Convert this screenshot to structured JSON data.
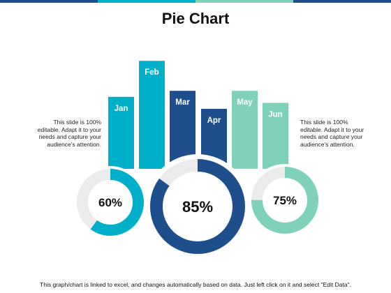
{
  "title": "Pie Chart",
  "side_text_left": "This slide is 100% editable. Adapt it to your needs and capture your audience's attention.",
  "side_text_right": "This slide is 100% editable. Adapt it to your needs and capture your audience's attention.",
  "footer": "This graph/chart is linked to excel, and changes automatically based on data.  Just left click on it and select \"Edit Data\".",
  "colors": {
    "teal": "#00b0ca",
    "navy": "#1f4e8c",
    "mint": "#7fd1b9",
    "track": "#ebebeb",
    "topbar": [
      "#1f4e8c",
      "#00b0ca",
      "#7fd1b9",
      "#1f4e8c"
    ]
  },
  "chart_data": [
    {
      "type": "bar",
      "categories": [
        "Jan",
        "Feb",
        "Mar",
        "Apr",
        "May",
        "Jun"
      ],
      "values": [
        6,
        9,
        6.5,
        5,
        6.5,
        5.5
      ],
      "colors": [
        "#00b0ca",
        "#00b0ca",
        "#1f4e8c",
        "#1f4e8c",
        "#7fd1b9",
        "#7fd1b9"
      ]
    },
    {
      "type": "pie",
      "rings": [
        {
          "label": "60%",
          "value": 60,
          "color": "#00b0ca"
        },
        {
          "label": "85%",
          "value": 85,
          "color": "#1f4e8c"
        },
        {
          "label": "75%",
          "value": 75,
          "color": "#7fd1b9"
        }
      ]
    }
  ]
}
